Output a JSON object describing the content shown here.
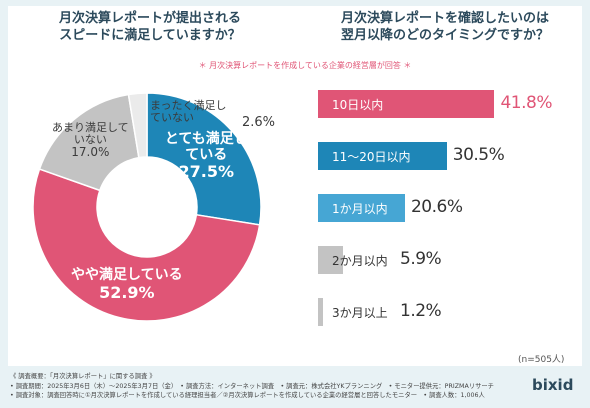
{
  "left_question": [
    "月次決算レポートが提出される",
    "スピードに満足していますか？"
  ],
  "right_question": [
    "月次決算レポートを確認したいのは",
    "翌月以降のどのタイミングですか？"
  ],
  "subtitle": "月次決算レポートを作成している企業の経営層が回答",
  "colors": {
    "pink": "#e05576",
    "blue": "#1e86b7",
    "lightblue": "#46a6d4",
    "gray": "#c3c3c3",
    "palegray": "#ebebeb"
  },
  "chart_data": [
    {
      "type": "pie",
      "title": "月次決算レポートが提出されるスピードに満足していますか？",
      "slices": [
        {
          "label": "とても満足している",
          "value": 27.5,
          "color": "#1e86b7"
        },
        {
          "label": "やや満足している",
          "value": 52.9,
          "color": "#e05576"
        },
        {
          "label": "あまり満足していない",
          "value": 17.0,
          "color": "#c3c3c3"
        },
        {
          "label": "まったく満足していない",
          "value": 2.6,
          "color": "#ebebeb"
        }
      ]
    },
    {
      "type": "bar",
      "title": "月次決算レポートを確認したいのは翌月以降のどのタイミングですか？",
      "categories": [
        "10日以内",
        "11〜20日以内",
        "1か月以内",
        "2か月以内",
        "3か月以上"
      ],
      "values": [
        41.8,
        30.5,
        20.6,
        5.9,
        1.2
      ],
      "colors": [
        "#e05576",
        "#1e86b7",
        "#46a6d4",
        "#c3c3c3",
        "#c3c3c3"
      ],
      "xlim": [
        0,
        45
      ],
      "n_label": "(n=505人)"
    }
  ],
  "footer": [
    "《 調査概要：「月次決算レポート」に関する調査 》",
    "• 調査期間：2025年3月6日（木）〜2025年3月7日（金）　• 調査方法：インターネット調査　• 調査元：株式会社YKプランニング　• モニター提供元：PRIZMAリサーチ",
    "• 調査対象：調査回答時に①月次決算レポートを作成している経理担当者／②月次決算レポートを作成している企業の経営層と回答したモニター　• 調査人数：1,006人"
  ],
  "logo": "bixid"
}
